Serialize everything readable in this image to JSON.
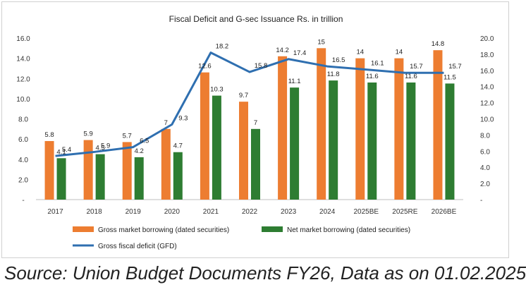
{
  "chart_data": {
    "type": "bar",
    "title": "Fiscal Deficit and G-sec Issuance Rs. in trillion",
    "categories": [
      "2017",
      "2018",
      "2019",
      "2020",
      "2021",
      "2022",
      "2023",
      "2024",
      "2025BE",
      "2025RE",
      "2026BE"
    ],
    "series": [
      {
        "name": "Gross market borrowing (dated securities)",
        "type": "bar",
        "axis": "left",
        "color": "#ed7d31",
        "values": [
          5.8,
          5.9,
          5.7,
          7.0,
          12.6,
          9.7,
          14.2,
          15.0,
          14.0,
          14.0,
          14.8
        ]
      },
      {
        "name": "Net market borrowing (dated securities)",
        "type": "bar",
        "axis": "left",
        "color": "#2e7d32",
        "values": [
          4.1,
          4.5,
          4.2,
          4.7,
          10.3,
          7.0,
          11.1,
          11.8,
          11.6,
          11.6,
          11.5
        ]
      },
      {
        "name": "Gross fiscal deficit (GFD)",
        "type": "line",
        "axis": "right",
        "color": "#2f6fb0",
        "values": [
          5.4,
          5.9,
          6.5,
          9.3,
          18.2,
          15.8,
          17.4,
          16.5,
          16.1,
          15.7,
          15.7
        ]
      }
    ],
    "ylim_left": [
      0,
      16
    ],
    "ylim_right": [
      0,
      20
    ],
    "left_ticks": [
      "-",
      "2.0",
      "4.0",
      "6.0",
      "8.0",
      "10.0",
      "12.0",
      "14.0",
      "16.0"
    ],
    "right_ticks": [
      "-",
      "2.0",
      "4.0",
      "6.0",
      "8.0",
      "10.0",
      "12.0",
      "14.0",
      "16.0",
      "18.0",
      "20.0"
    ],
    "line_labels": [
      "5.4",
      "5.9",
      "6.5",
      "9.3",
      "18.2",
      "15.8",
      "17.4",
      "16.5",
      "16.1",
      "15.7",
      "15.7"
    ],
    "legend": "bottom",
    "grid": false
  },
  "source_text": "Source: Union Budget Documents FY26, Data as on 01.02.2025"
}
